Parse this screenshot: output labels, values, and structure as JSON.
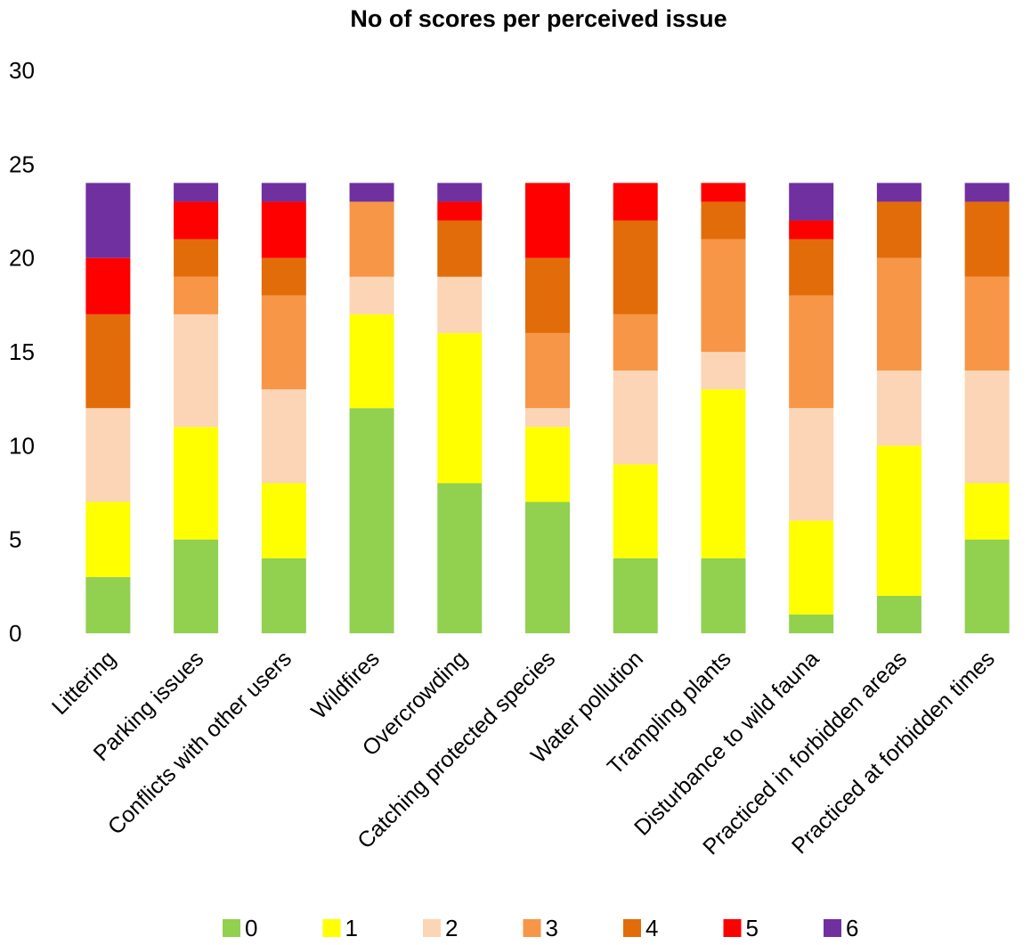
{
  "chart_data": {
    "type": "bar",
    "stacked": true,
    "title": "No of scores per perceived issue",
    "xlabel": "",
    "ylabel": "",
    "ylim": [
      0,
      30
    ],
    "yticks": [
      0,
      5,
      10,
      15,
      20,
      25,
      30
    ],
    "grid": false,
    "legend_position": "bottom",
    "categories": [
      "Littering",
      "Parking issues",
      "Conflicts with other users",
      "Wildfires",
      "Overcrowding",
      "Catching protected species",
      "Water pollution",
      "Trampling plants",
      "Disturbance to wild fauna",
      "Practiced in forbidden areas",
      "Practiced at forbidden times"
    ],
    "series": [
      {
        "name": "0",
        "color": "#92d050",
        "values": [
          3,
          5,
          4,
          12,
          8,
          7,
          4,
          4,
          1,
          2,
          5
        ]
      },
      {
        "name": "1",
        "color": "#ffff00",
        "values": [
          4,
          6,
          4,
          5,
          8,
          4,
          5,
          9,
          5,
          8,
          3
        ]
      },
      {
        "name": "2",
        "color": "#fbd5b5",
        "values": [
          5,
          6,
          5,
          2,
          3,
          1,
          5,
          2,
          6,
          4,
          6
        ]
      },
      {
        "name": "3",
        "color": "#f79646",
        "values": [
          0,
          2,
          5,
          4,
          0,
          4,
          3,
          6,
          6,
          6,
          5
        ]
      },
      {
        "name": "4",
        "color": "#e36c0a",
        "values": [
          5,
          2,
          2,
          0,
          3,
          4,
          5,
          2,
          3,
          3,
          4
        ]
      },
      {
        "name": "5",
        "color": "#ff0000",
        "values": [
          3,
          2,
          3,
          0,
          1,
          4,
          2,
          1,
          1,
          0,
          0
        ]
      },
      {
        "name": "6",
        "color": "#7030a0",
        "values": [
          4,
          1,
          1,
          1,
          1,
          0,
          0,
          0,
          2,
          1,
          1
        ]
      }
    ]
  }
}
